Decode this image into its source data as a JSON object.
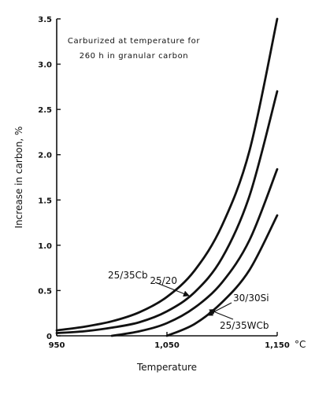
{
  "chart_data": {
    "type": "line",
    "title": "",
    "annotation": [
      "Carburized at temperature for",
      "260 h in granular carbon"
    ],
    "xlabel": "Temperature",
    "ylabel": "Increase in carbon, %",
    "x_unit": "°C",
    "xlim": [
      950,
      1150
    ],
    "ylim": [
      0,
      3.5
    ],
    "x_ticks": [
      950,
      1050,
      1150
    ],
    "x_tick_labels": [
      "950",
      "1,050",
      "1,150"
    ],
    "y_ticks": [
      0,
      0.5,
      1.0,
      1.5,
      2.0,
      2.5,
      3.0,
      3.5
    ],
    "y_tick_labels": [
      "0",
      "0.5",
      "1.0",
      "1.5",
      "2.0",
      "2.5",
      "3.0",
      "3.5"
    ],
    "grid": false,
    "series": [
      {
        "name": "25/20",
        "x": [
          950,
          975,
          1000,
          1025,
          1050,
          1075,
          1100,
          1125,
          1150
        ],
        "y": [
          0.06,
          0.1,
          0.16,
          0.26,
          0.43,
          0.72,
          1.22,
          2.05,
          3.5
        ]
      },
      {
        "name": "25/35Cb",
        "x": [
          950,
          975,
          1000,
          1025,
          1050,
          1075,
          1100,
          1125,
          1150
        ],
        "y": [
          0.03,
          0.05,
          0.09,
          0.15,
          0.27,
          0.48,
          0.86,
          1.55,
          2.7
        ]
      },
      {
        "name": "30/30Si",
        "x": [
          1000,
          1025,
          1050,
          1075,
          1100,
          1125,
          1150
        ],
        "y": [
          0.0,
          0.05,
          0.14,
          0.31,
          0.59,
          1.06,
          1.84
        ]
      },
      {
        "name": "25/35WCb",
        "x": [
          1050,
          1075,
          1100,
          1125,
          1150
        ],
        "y": [
          0.0,
          0.13,
          0.37,
          0.73,
          1.33
        ]
      }
    ]
  }
}
